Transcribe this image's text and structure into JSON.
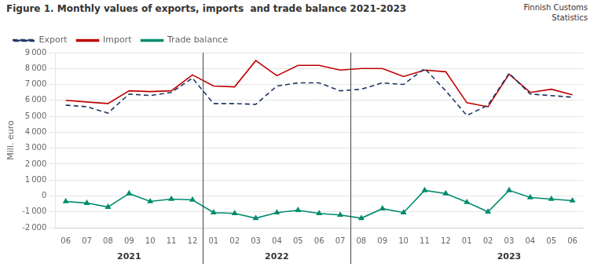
{
  "chart_data": {
    "type": "line",
    "title": "Figure 1. Monthly values of exports, imports  and trade balance 2021-2023",
    "subtitle": "Finnish Customs\nStatistics",
    "ylabel": "Mill. euro",
    "categories": [
      "06",
      "07",
      "08",
      "09",
      "10",
      "11",
      "12",
      "01",
      "02",
      "03",
      "04",
      "05",
      "06",
      "07",
      "08",
      "09",
      "10",
      "11",
      "12",
      "01",
      "02",
      "03",
      "04",
      "05",
      "06"
    ],
    "series": [
      {
        "name": "Export",
        "color": "#1f3864",
        "line_style": "dashed",
        "values": [
          5700,
          5600,
          5200,
          6400,
          6300,
          6500,
          7400,
          5800,
          5800,
          5750,
          6900,
          7100,
          7100,
          6600,
          6700,
          7100,
          7000,
          8000,
          6600,
          5050,
          5700,
          7700,
          6400,
          6300,
          6200
        ]
      },
      {
        "name": "Import",
        "color": "#c00000",
        "line_style": "solid",
        "values": [
          6000,
          5900,
          5800,
          6600,
          6550,
          6600,
          7600,
          6900,
          6850,
          8500,
          7550,
          8200,
          8200,
          7900,
          8000,
          8000,
          7500,
          7900,
          7800,
          5850,
          5600,
          7650,
          6500,
          6700,
          6350
        ]
      },
      {
        "name": "Trade balance",
        "color": "#008b6e",
        "line_style": "solid",
        "marker": "triangle",
        "values": [
          -350,
          -450,
          -700,
          150,
          -350,
          -200,
          -250,
          -1050,
          -1100,
          -1400,
          -1050,
          -900,
          -1100,
          -1200,
          -1400,
          -800,
          -1050,
          350,
          150,
          -400,
          -1000,
          350,
          -100,
          -200,
          -300
        ]
      }
    ],
    "ylim": [
      -2000,
      9000
    ],
    "yticks": [
      {
        "value": -2000,
        "label": "-2 000"
      },
      {
        "value": -1000,
        "label": "-1 000"
      },
      0,
      {
        "value": 1000,
        "label": "1 000"
      },
      {
        "value": 2000,
        "label": "2 000"
      },
      {
        "value": 3000,
        "label": "3 000"
      },
      {
        "value": 4000,
        "label": "4 000"
      },
      {
        "value": 5000,
        "label": "5 000"
      },
      {
        "value": 6000,
        "label": "6 000"
      },
      {
        "value": 7000,
        "label": "7 000"
      },
      {
        "value": 8000,
        "label": "8 000"
      },
      {
        "value": 9000,
        "label": "9 000"
      }
    ],
    "grid": true,
    "legend": "top",
    "annotations": [
      {
        "text": "2021",
        "x": 3
      },
      {
        "text": "2022",
        "x": 10
      },
      {
        "text": "2023",
        "x": 21
      }
    ],
    "vlines": [
      6.5,
      13.5
    ]
  }
}
